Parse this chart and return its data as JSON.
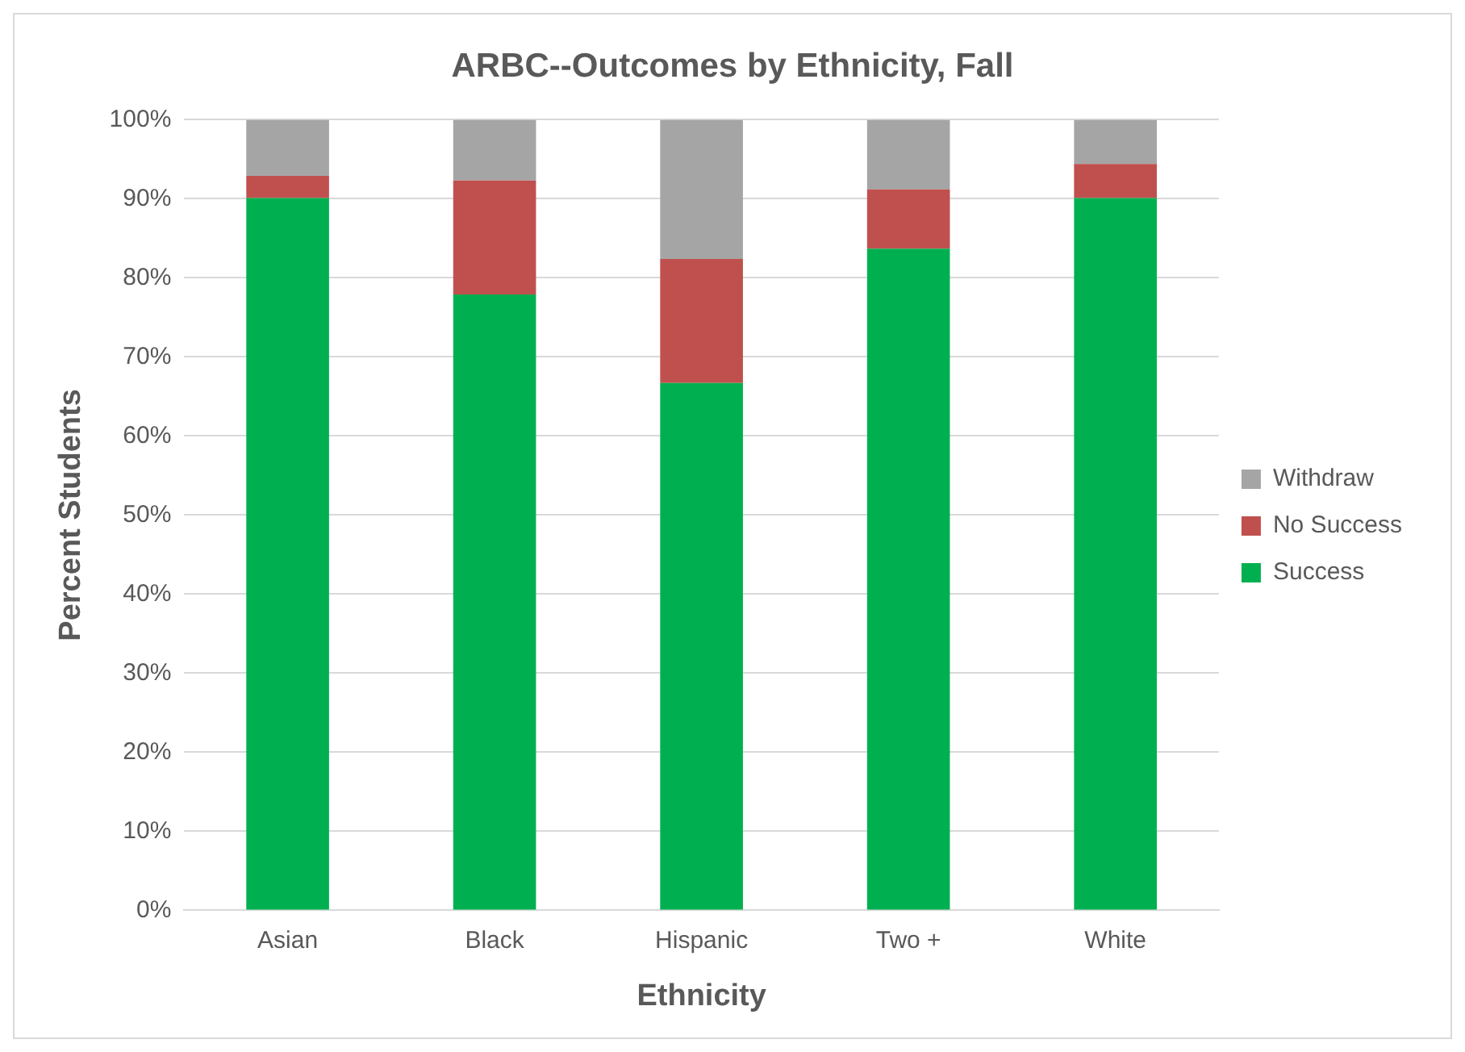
{
  "chart_data": {
    "type": "bar",
    "title": "ARBC--Outcomes by Ethnicity, Fall",
    "xlabel": "Ethnicity",
    "ylabel": "Percent Students",
    "categories": [
      "Asian",
      "Black",
      "Hispanic",
      "Two +",
      "White"
    ],
    "stacked": true,
    "series": [
      {
        "name": "Success",
        "color": "#00b050",
        "values": [
          90.1,
          77.9,
          66.7,
          83.7,
          90.1
        ]
      },
      {
        "name": "No Success",
        "color": "#c0504d",
        "values": [
          2.8,
          14.4,
          15.7,
          7.5,
          4.3
        ]
      },
      {
        "name": "Withdraw",
        "color": "#a5a5a5",
        "values": [
          7.1,
          7.7,
          17.6,
          8.8,
          5.6
        ]
      }
    ],
    "ylim": [
      0,
      100
    ],
    "yticks": [
      {
        "value": 0,
        "label": "0%"
      },
      {
        "value": 10,
        "label": "10%"
      },
      {
        "value": 20,
        "label": "20%"
      },
      {
        "value": 30,
        "label": "30%"
      },
      {
        "value": 40,
        "label": "40%"
      },
      {
        "value": 50,
        "label": "50%"
      },
      {
        "value": 60,
        "label": "60%"
      },
      {
        "value": 70,
        "label": "70%"
      },
      {
        "value": 80,
        "label": "80%"
      },
      {
        "value": 90,
        "label": "90%"
      },
      {
        "value": 100,
        "label": "100%"
      }
    ],
    "grid": "y",
    "legend": "right"
  }
}
